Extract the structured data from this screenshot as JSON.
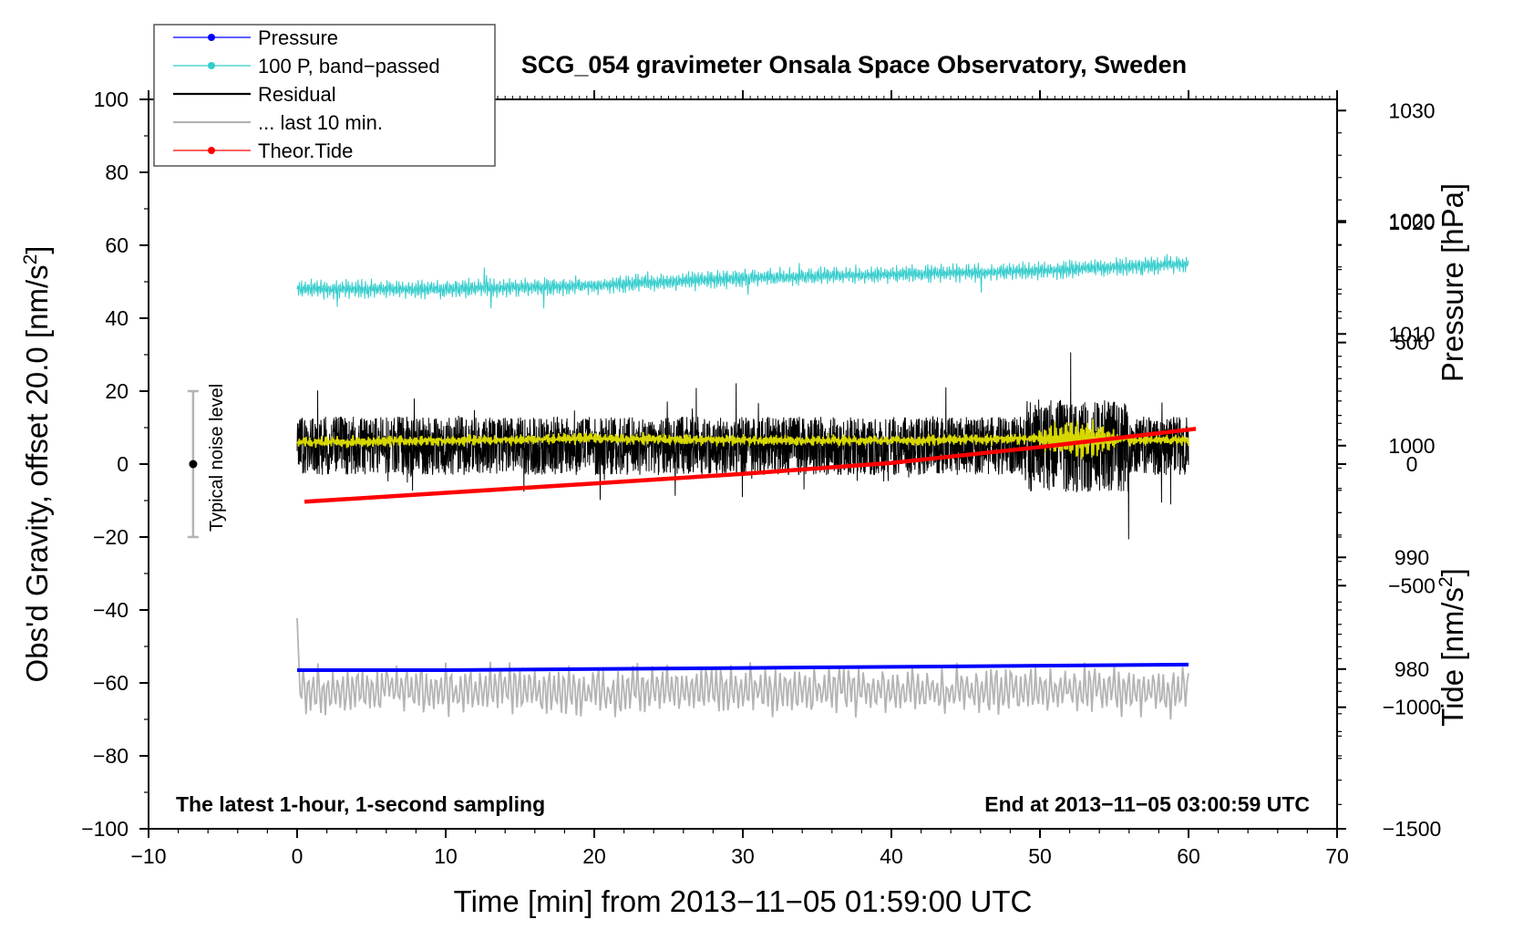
{
  "chart_data": {
    "type": "line",
    "title": "SCG_054 gravimeter Onsala Space Observatory, Sweden",
    "xlabel": "Time [min] from 2013−11−05 01:59:00 UTC",
    "ylabel_left_main": "Obs'd Gravity, offset 20.0 [nm/s",
    "ylabel_left_sup": "2",
    "ylabel_left_end": "]",
    "ylabel_right_pressure": "Pressure [hPa]",
    "ylabel_right_tide_main": "Tide [nm/s",
    "ylabel_right_tide_sup": "2",
    "ylabel_right_tide_end": "]",
    "note_left": "The latest 1-hour, 1-second sampling",
    "note_right": "End at 2013−11−05 03:00:59 UTC",
    "noise_label": "Typical noise level",
    "noise_bar": {
      "x": -7,
      "center": 0,
      "low": -20,
      "high": 20
    },
    "xlim": [
      -10,
      70
    ],
    "ylim": [
      -100,
      100
    ],
    "pressure_lim": [
      965.7,
      1031
    ],
    "tide_lim": [
      -1500,
      1500
    ],
    "x_ticks": [
      -10,
      0,
      10,
      20,
      30,
      40,
      50,
      60,
      70
    ],
    "x_tick_labels": [
      "−10",
      "0",
      "10",
      "20",
      "30",
      "40",
      "50",
      "60",
      "70"
    ],
    "y_ticks": [
      -100,
      -80,
      -60,
      -40,
      -20,
      0,
      20,
      40,
      60,
      80,
      100
    ],
    "y_tick_labels": [
      "−100",
      "−80",
      "−60",
      "−40",
      "−20",
      "0",
      "20",
      "40",
      "60",
      "80",
      "100"
    ],
    "pressure_ticks": [
      980,
      990,
      1000,
      1010,
      1020,
      1030
    ],
    "pressure_tick_labels": [
      "980",
      "990",
      "1000",
      "1010",
      "1020",
      "1030"
    ],
    "tide_ticks": [
      -1500,
      -1000,
      -500,
      0,
      500,
      1000
    ],
    "tide_tick_labels": [
      "−1500",
      "−1000",
      "−500",
      "0",
      "500",
      "1000"
    ],
    "legend": [
      {
        "label": "Pressure",
        "color": "#0000ff",
        "marker": true
      },
      {
        "label": "100 P, band−passed",
        "color": "#33cccc",
        "marker": true
      },
      {
        "label": "Residual",
        "color": "#000000",
        "marker": false
      },
      {
        "label": "... last 10 min.",
        "color": "#b4b4b4",
        "marker": false
      },
      {
        "label": "Theor.Tide",
        "color": "#ff0000",
        "marker": true
      }
    ],
    "series": [
      {
        "name": "Pressure",
        "color": "#0000ff",
        "axis": "pressure",
        "x": [
          0,
          10,
          20,
          30,
          40,
          50,
          60
        ],
        "values": [
          979.9,
          979.9,
          980.0,
          980.1,
          980.2,
          980.3,
          980.4
        ]
      },
      {
        "name": "100 P, band-passed",
        "color": "#33cccc",
        "axis": "left",
        "x": [
          0,
          10,
          20,
          30,
          40,
          50,
          60
        ],
        "values": [
          48,
          48,
          49,
          51,
          52,
          53,
          55
        ],
        "noise_amplitude": 3
      },
      {
        "name": "Residual",
        "color": "#000000",
        "axis": "left",
        "x": [
          0,
          10,
          20,
          30,
          40,
          50,
          60
        ],
        "values": [
          5,
          5,
          5,
          5,
          5,
          5,
          5
        ],
        "noise_amplitude": 8
      },
      {
        "name": "Residual smoothed",
        "color": "#d7d700",
        "axis": "left",
        "x": [
          0,
          10,
          20,
          30,
          40,
          50,
          60
        ],
        "values": [
          6,
          6.5,
          7,
          6.5,
          6.5,
          7,
          6.5
        ]
      },
      {
        "name": "... last 10 min.",
        "color": "#b4b4b4",
        "axis": "left",
        "x": [
          0,
          10,
          20,
          30,
          40,
          50,
          60
        ],
        "values": [
          -62,
          -62,
          -62,
          -62,
          -62,
          -62,
          -62
        ],
        "noise_amplitude": 11
      },
      {
        "name": "Theor.Tide",
        "color": "#ff0000",
        "axis": "tide",
        "x": [
          0.5,
          10,
          20,
          30,
          40,
          50,
          60.5
        ],
        "values": [
          -155,
          -118,
          -80,
          -40,
          5,
          70,
          145
        ]
      }
    ]
  }
}
